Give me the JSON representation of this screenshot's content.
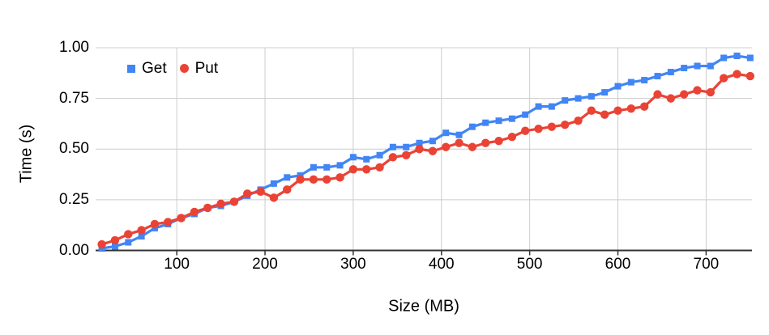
{
  "chart_data": {
    "type": "line",
    "title": "",
    "xlabel": "Size (MB)",
    "ylabel": "Time (s)",
    "xlim": [
      8,
      752
    ],
    "ylim": [
      0,
      1.0
    ],
    "grid": true,
    "legend_position": "top-left",
    "x_ticks": [
      {
        "label": "100",
        "value": 100
      },
      {
        "label": "200",
        "value": 200
      },
      {
        "label": "300",
        "value": 300
      },
      {
        "label": "400",
        "value": 400
      },
      {
        "label": "500",
        "value": 500
      },
      {
        "label": "600",
        "value": 600
      },
      {
        "label": "700",
        "value": 700
      }
    ],
    "y_ticks": [
      {
        "label": "0.00",
        "value": 0
      },
      {
        "label": "0.25",
        "value": 0.25
      },
      {
        "label": "0.50",
        "value": 0.5
      },
      {
        "label": "0.75",
        "value": 0.75
      },
      {
        "label": "1.00",
        "value": 1.0
      }
    ],
    "x": [
      15,
      30,
      45,
      60,
      75,
      90,
      105,
      120,
      135,
      150,
      165,
      180,
      195,
      210,
      225,
      240,
      255,
      270,
      285,
      300,
      315,
      330,
      345,
      360,
      375,
      390,
      405,
      420,
      435,
      450,
      465,
      480,
      495,
      510,
      525,
      540,
      555,
      570,
      585,
      600,
      615,
      630,
      645,
      660,
      675,
      690,
      705,
      720,
      735,
      750
    ],
    "series": [
      {
        "name": "Get",
        "marker": "square",
        "color": "#4285F4",
        "values": [
          0.01,
          0.02,
          0.04,
          0.07,
          0.11,
          0.13,
          0.16,
          0.18,
          0.21,
          0.22,
          0.24,
          0.27,
          0.3,
          0.33,
          0.36,
          0.37,
          0.41,
          0.41,
          0.42,
          0.46,
          0.45,
          0.47,
          0.51,
          0.51,
          0.53,
          0.54,
          0.58,
          0.57,
          0.61,
          0.63,
          0.64,
          0.65,
          0.67,
          0.71,
          0.71,
          0.74,
          0.75,
          0.76,
          0.78,
          0.81,
          0.83,
          0.84,
          0.86,
          0.88,
          0.9,
          0.91,
          0.91,
          0.95,
          0.96,
          0.95
        ]
      },
      {
        "name": "Put",
        "marker": "circle",
        "color": "#EA4335",
        "values": [
          0.03,
          0.05,
          0.08,
          0.1,
          0.13,
          0.14,
          0.16,
          0.19,
          0.21,
          0.23,
          0.24,
          0.28,
          0.29,
          0.26,
          0.3,
          0.35,
          0.35,
          0.35,
          0.36,
          0.4,
          0.4,
          0.41,
          0.46,
          0.47,
          0.5,
          0.49,
          0.51,
          0.53,
          0.51,
          0.53,
          0.54,
          0.56,
          0.59,
          0.6,
          0.61,
          0.62,
          0.64,
          0.69,
          0.67,
          0.69,
          0.7,
          0.71,
          0.77,
          0.75,
          0.77,
          0.79,
          0.78,
          0.85,
          0.87,
          0.86
        ]
      }
    ],
    "colors": {
      "background": "#ffffff",
      "grid": "#cccccc",
      "axis": "#333333",
      "text": "#000000"
    }
  }
}
